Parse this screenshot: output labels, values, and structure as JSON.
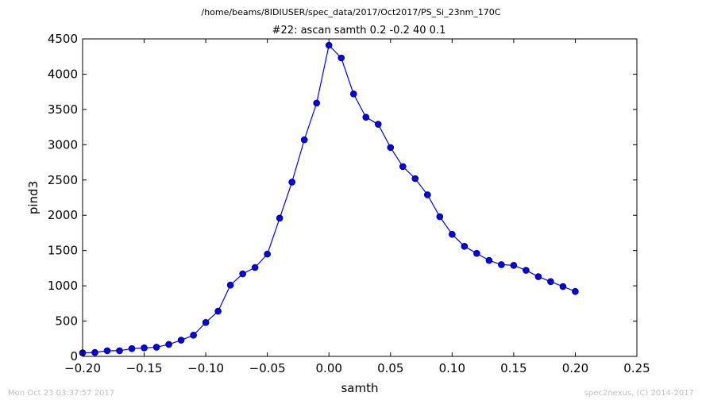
{
  "chart_data": {
    "type": "line",
    "suptitle": "/home/beams/8IDIUSER/spec_data/2017/Oct2017/PS_Si_23nm_170C",
    "title": "#22: ascan  samth 0.2 -0.2  40 0.1",
    "xlabel": "samth",
    "ylabel": "pind3",
    "xlim": [
      -0.2,
      0.25
    ],
    "ylim": [
      0,
      4500
    ],
    "xticks": [
      -0.2,
      -0.15,
      -0.1,
      -0.05,
      0.0,
      0.05,
      0.1,
      0.15,
      0.2,
      0.25
    ],
    "xtick_labels": [
      "−0.20",
      "−0.15",
      "−0.10",
      "−0.05",
      "0.00",
      "0.05",
      "0.10",
      "0.15",
      "0.20",
      "0.25"
    ],
    "yticks": [
      0,
      500,
      1000,
      1500,
      2000,
      2500,
      3000,
      3500,
      4000,
      4500
    ],
    "ytick_labels": [
      "0",
      "500",
      "1000",
      "1500",
      "2000",
      "2500",
      "3000",
      "3500",
      "4000",
      "4500"
    ],
    "grid": false,
    "series": [
      {
        "color": "#0000ff",
        "marker": "circle",
        "x": [
          -0.2,
          -0.19,
          -0.18,
          -0.17,
          -0.16,
          -0.15,
          -0.14,
          -0.13,
          -0.12,
          -0.11,
          -0.1,
          -0.09,
          -0.08,
          -0.07,
          -0.06,
          -0.05,
          -0.04,
          -0.03,
          -0.02,
          -0.01,
          0.0,
          0.01,
          0.02,
          0.03,
          0.04,
          0.05,
          0.06,
          0.07,
          0.08,
          0.09,
          0.1,
          0.11,
          0.12,
          0.13,
          0.14,
          0.15,
          0.16,
          0.17,
          0.18,
          0.19,
          0.2
        ],
        "y": [
          50,
          55,
          80,
          80,
          110,
          120,
          130,
          170,
          230,
          300,
          480,
          640,
          1010,
          1170,
          1260,
          1450,
          1960,
          2470,
          3070,
          3590,
          4410,
          4230,
          3720,
          3390,
          3290,
          2960,
          2690,
          2520,
          2290,
          1980,
          1730,
          1560,
          1460,
          1360,
          1300,
          1290,
          1220,
          1130,
          1060,
          990,
          920
        ]
      }
    ]
  },
  "footer": {
    "timestamp": "Mon Oct 23 03:37:57 2017",
    "credit": "spec2nexus, (C) 2014-2017"
  }
}
